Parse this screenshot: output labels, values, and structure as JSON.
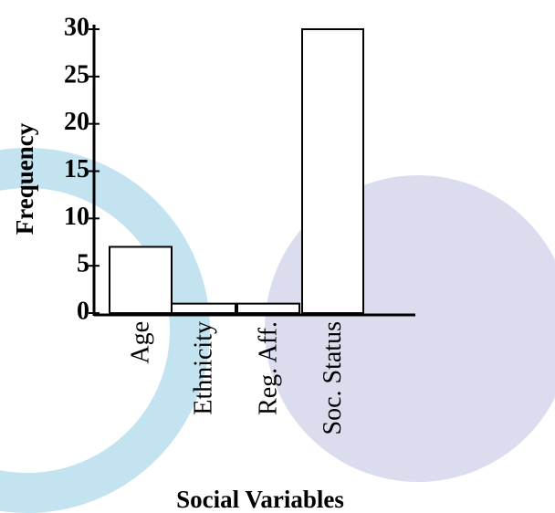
{
  "chart_data": {
    "type": "bar",
    "categories": [
      "Age",
      "Ethnicity",
      "Reg. Aff.",
      "Soc. Status"
    ],
    "values": [
      7,
      1,
      1,
      30
    ],
    "color": "#ffffff",
    "ylim": [
      0,
      30
    ],
    "yticks": [
      0,
      5,
      10,
      15,
      20,
      25,
      30
    ],
    "xlabel": "Social Variables",
    "ylabel": "Frequency"
  }
}
